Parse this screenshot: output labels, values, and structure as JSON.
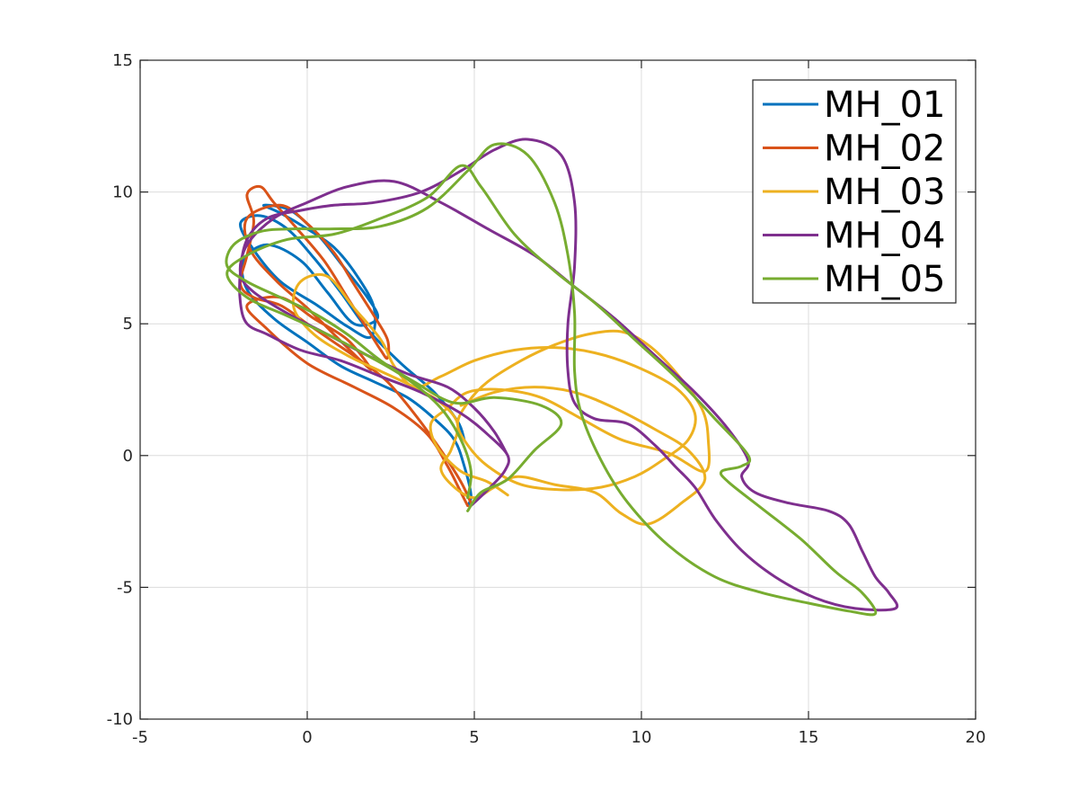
{
  "chart_data": {
    "type": "line",
    "title": "",
    "xlabel": "",
    "ylabel": "",
    "xlim": [
      -5,
      20
    ],
    "ylim": [
      -10,
      15
    ],
    "x_ticks": [
      "-5",
      "0",
      "5",
      "10",
      "15",
      "20"
    ],
    "y_ticks": [
      "15",
      "10",
      "5",
      "0",
      "-5",
      "-10"
    ],
    "grid": true,
    "legend_position": "top-right",
    "series": [
      {
        "name": "MH_01",
        "color": "#0072bd",
        "points": [
          [
            4.7,
            0.6
          ],
          [
            4.5,
            1.3
          ],
          [
            3.8,
            2.4
          ],
          [
            2.8,
            3.5
          ],
          [
            1.8,
            4.8
          ],
          [
            1.0,
            6.2
          ],
          [
            0.2,
            7.5
          ],
          [
            -0.6,
            8.6
          ],
          [
            -1.4,
            9.1
          ],
          [
            -2.0,
            8.8
          ],
          [
            -1.6,
            7.8
          ],
          [
            -0.8,
            6.6
          ],
          [
            0.3,
            5.7
          ],
          [
            1.2,
            4.9
          ],
          [
            1.9,
            4.5
          ],
          [
            2.0,
            5.6
          ],
          [
            1.5,
            6.8
          ],
          [
            0.8,
            7.9
          ],
          [
            0.0,
            8.6
          ],
          [
            -0.8,
            9.2
          ],
          [
            -1.3,
            9.5
          ],
          [
            -0.5,
            9.3
          ],
          [
            0.3,
            8.4
          ],
          [
            1.0,
            7.3
          ],
          [
            1.8,
            6.0
          ],
          [
            2.1,
            5.2
          ],
          [
            1.4,
            5.0
          ],
          [
            0.6,
            6.2
          ],
          [
            -0.2,
            7.4
          ],
          [
            -1.2,
            8.0
          ],
          [
            -1.9,
            7.4
          ],
          [
            -1.8,
            6.3
          ],
          [
            -1.0,
            5.2
          ],
          [
            0.0,
            4.3
          ],
          [
            1.0,
            3.4
          ],
          [
            2.0,
            2.8
          ],
          [
            3.0,
            2.2
          ],
          [
            3.8,
            1.4
          ],
          [
            4.4,
            0.6
          ],
          [
            4.7,
            -0.4
          ],
          [
            4.9,
            -1.5
          ],
          [
            4.8,
            -1.9
          ]
        ]
      },
      {
        "name": "MH_02",
        "color": "#d95319",
        "points": [
          [
            4.9,
            -1.8
          ],
          [
            4.6,
            -1.0
          ],
          [
            4.0,
            0.2
          ],
          [
            3.2,
            1.6
          ],
          [
            2.4,
            2.8
          ],
          [
            1.6,
            3.6
          ],
          [
            0.8,
            4.3
          ],
          [
            0.0,
            5.0
          ],
          [
            -0.8,
            5.7
          ],
          [
            -1.6,
            6.0
          ],
          [
            -2.0,
            6.5
          ],
          [
            -1.8,
            7.6
          ],
          [
            -1.6,
            8.9
          ],
          [
            -1.8,
            9.9
          ],
          [
            -1.4,
            10.2
          ],
          [
            -1.0,
            9.6
          ],
          [
            -0.3,
            8.6
          ],
          [
            0.5,
            7.4
          ],
          [
            1.2,
            6.0
          ],
          [
            1.8,
            4.8
          ],
          [
            2.2,
            4.0
          ],
          [
            2.4,
            3.7
          ],
          [
            2.4,
            4.4
          ],
          [
            2.0,
            5.3
          ],
          [
            1.4,
            6.5
          ],
          [
            0.8,
            7.7
          ],
          [
            0.0,
            8.8
          ],
          [
            -0.8,
            9.5
          ],
          [
            -1.8,
            9.0
          ],
          [
            -1.7,
            7.8
          ],
          [
            -0.9,
            6.6
          ],
          [
            0.0,
            5.6
          ],
          [
            0.8,
            4.6
          ],
          [
            1.6,
            3.6
          ],
          [
            1.9,
            3.3
          ],
          [
            1.2,
            4.4
          ],
          [
            0.2,
            5.2
          ],
          [
            -0.8,
            6.0
          ],
          [
            -1.8,
            5.7
          ],
          [
            -1.2,
            4.8
          ],
          [
            0.0,
            3.5
          ],
          [
            1.4,
            2.6
          ],
          [
            2.6,
            1.8
          ],
          [
            3.6,
            0.8
          ],
          [
            4.2,
            -0.4
          ],
          [
            4.6,
            -1.4
          ],
          [
            4.8,
            -1.9
          ]
        ]
      },
      {
        "name": "MH_03",
        "color": "#edb120",
        "points": [
          [
            6.0,
            -1.5
          ],
          [
            5.4,
            -1.0
          ],
          [
            4.6,
            -0.6
          ],
          [
            3.9,
            0.3
          ],
          [
            3.7,
            1.2
          ],
          [
            4.2,
            1.8
          ],
          [
            4.8,
            2.4
          ],
          [
            5.8,
            2.5
          ],
          [
            7.0,
            2.2
          ],
          [
            8.2,
            1.4
          ],
          [
            9.4,
            0.6
          ],
          [
            10.8,
            0.1
          ],
          [
            11.9,
            -0.6
          ],
          [
            12.0,
            0.6
          ],
          [
            11.8,
            1.8
          ],
          [
            11.0,
            3.2
          ],
          [
            10.2,
            4.2
          ],
          [
            9.4,
            4.7
          ],
          [
            8.4,
            4.6
          ],
          [
            7.4,
            4.2
          ],
          [
            6.4,
            3.6
          ],
          [
            5.4,
            2.8
          ],
          [
            4.8,
            2.0
          ],
          [
            4.5,
            1.2
          ],
          [
            4.8,
            0.4
          ],
          [
            5.4,
            -0.4
          ],
          [
            6.4,
            -1.1
          ],
          [
            7.6,
            -1.3
          ],
          [
            8.8,
            -1.2
          ],
          [
            9.8,
            -0.8
          ],
          [
            10.6,
            -0.2
          ],
          [
            11.4,
            0.6
          ],
          [
            11.6,
            1.6
          ],
          [
            11.0,
            2.6
          ],
          [
            9.8,
            3.4
          ],
          [
            8.6,
            3.9
          ],
          [
            7.4,
            4.1
          ],
          [
            6.2,
            4.0
          ],
          [
            5.0,
            3.6
          ],
          [
            4.0,
            3.0
          ],
          [
            3.2,
            2.6
          ],
          [
            2.6,
            3.4
          ],
          [
            2.2,
            4.4
          ],
          [
            1.4,
            5.6
          ],
          [
            0.6,
            6.8
          ],
          [
            -0.2,
            6.6
          ],
          [
            -0.4,
            5.6
          ],
          [
            0.2,
            4.6
          ],
          [
            1.2,
            3.8
          ],
          [
            2.2,
            3.2
          ],
          [
            3.2,
            2.6
          ],
          [
            4.0,
            2.0
          ],
          [
            4.5,
            1.2
          ],
          [
            4.3,
            0.2
          ],
          [
            4.0,
            -0.5
          ],
          [
            4.4,
            -1.2
          ],
          [
            5.0,
            -1.6
          ],
          [
            5.6,
            -1.2
          ],
          [
            6.3,
            -0.8
          ],
          [
            7.4,
            -1.1
          ],
          [
            8.6,
            -1.4
          ],
          [
            9.4,
            -2.2
          ],
          [
            10.2,
            -2.6
          ],
          [
            11.2,
            -1.8
          ],
          [
            11.9,
            -0.9
          ],
          [
            11.4,
            0.2
          ],
          [
            10.4,
            1.0
          ],
          [
            9.2,
            1.8
          ],
          [
            8.0,
            2.4
          ],
          [
            6.8,
            2.6
          ],
          [
            5.6,
            2.4
          ],
          [
            4.6,
            1.9
          ]
        ]
      },
      {
        "name": "MH_04",
        "color": "#7e2f8e",
        "points": [
          [
            4.9,
            -1.9
          ],
          [
            5.4,
            -1.3
          ],
          [
            5.9,
            -0.6
          ],
          [
            6.0,
            0.0
          ],
          [
            5.4,
            0.8
          ],
          [
            4.6,
            1.6
          ],
          [
            3.4,
            2.4
          ],
          [
            2.2,
            3.0
          ],
          [
            1.0,
            3.6
          ],
          [
            -0.2,
            4.0
          ],
          [
            -1.2,
            4.6
          ],
          [
            -1.8,
            5.0
          ],
          [
            -2.0,
            5.8
          ],
          [
            -2.0,
            7.0
          ],
          [
            -1.8,
            8.2
          ],
          [
            -1.2,
            9.0
          ],
          [
            -0.2,
            9.3
          ],
          [
            0.8,
            9.5
          ],
          [
            2.0,
            9.6
          ],
          [
            3.4,
            10.0
          ],
          [
            4.6,
            10.8
          ],
          [
            5.6,
            11.6
          ],
          [
            6.6,
            12.0
          ],
          [
            7.6,
            11.4
          ],
          [
            8.0,
            9.6
          ],
          [
            8.0,
            7.2
          ],
          [
            7.8,
            5.0
          ],
          [
            7.8,
            3.2
          ],
          [
            8.0,
            2.0
          ],
          [
            8.6,
            1.4
          ],
          [
            9.6,
            1.2
          ],
          [
            10.4,
            0.4
          ],
          [
            11.0,
            -0.4
          ],
          [
            11.6,
            -1.2
          ],
          [
            12.2,
            -2.4
          ],
          [
            13.0,
            -3.6
          ],
          [
            14.0,
            -4.6
          ],
          [
            15.2,
            -5.4
          ],
          [
            16.4,
            -5.8
          ],
          [
            17.6,
            -5.8
          ],
          [
            17.4,
            -5.2
          ],
          [
            17.0,
            -4.6
          ],
          [
            16.6,
            -3.6
          ],
          [
            16.2,
            -2.6
          ],
          [
            15.6,
            -2.1
          ],
          [
            14.4,
            -1.8
          ],
          [
            13.4,
            -1.4
          ],
          [
            13.0,
            -0.8
          ],
          [
            13.2,
            -0.2
          ],
          [
            12.6,
            1.0
          ],
          [
            11.6,
            2.4
          ],
          [
            10.4,
            3.8
          ],
          [
            9.2,
            5.2
          ],
          [
            8.0,
            6.4
          ],
          [
            6.8,
            7.6
          ],
          [
            5.4,
            8.6
          ],
          [
            4.0,
            9.6
          ],
          [
            2.6,
            10.4
          ],
          [
            1.2,
            10.2
          ],
          [
            0.0,
            9.6
          ],
          [
            -1.0,
            9.0
          ],
          [
            -1.8,
            8.0
          ],
          [
            -2.0,
            6.9
          ],
          [
            -1.6,
            6.2
          ],
          [
            -0.6,
            5.4
          ],
          [
            0.6,
            4.6
          ],
          [
            1.8,
            3.8
          ],
          [
            3.0,
            3.1
          ],
          [
            4.2,
            2.6
          ],
          [
            5.0,
            1.8
          ],
          [
            5.6,
            0.9
          ],
          [
            6.0,
            0.0
          ]
        ]
      },
      {
        "name": "MH_05",
        "color": "#77ac30",
        "points": [
          [
            4.8,
            -2.1
          ],
          [
            5.2,
            -1.4
          ],
          [
            6.0,
            -0.9
          ],
          [
            6.8,
            0.2
          ],
          [
            7.6,
            1.2
          ],
          [
            7.0,
            1.9
          ],
          [
            5.6,
            2.2
          ],
          [
            4.4,
            2.0
          ],
          [
            3.2,
            2.8
          ],
          [
            2.2,
            3.6
          ],
          [
            1.2,
            4.6
          ],
          [
            0.2,
            5.4
          ],
          [
            -0.8,
            6.0
          ],
          [
            -1.8,
            6.6
          ],
          [
            -2.4,
            7.2
          ],
          [
            -2.2,
            8.0
          ],
          [
            -1.4,
            8.5
          ],
          [
            -0.4,
            8.6
          ],
          [
            0.8,
            8.6
          ],
          [
            2.2,
            8.7
          ],
          [
            3.6,
            9.4
          ],
          [
            4.8,
            10.8
          ],
          [
            5.6,
            11.8
          ],
          [
            6.6,
            11.4
          ],
          [
            7.4,
            9.6
          ],
          [
            7.8,
            7.6
          ],
          [
            8.0,
            5.4
          ],
          [
            8.0,
            3.2
          ],
          [
            8.2,
            1.6
          ],
          [
            8.8,
            -0.2
          ],
          [
            9.6,
            -1.8
          ],
          [
            10.8,
            -3.4
          ],
          [
            12.2,
            -4.6
          ],
          [
            13.6,
            -5.2
          ],
          [
            15.0,
            -5.6
          ],
          [
            16.2,
            -5.9
          ],
          [
            17.0,
            -6.0
          ],
          [
            16.6,
            -5.2
          ],
          [
            15.8,
            -4.4
          ],
          [
            14.8,
            -3.2
          ],
          [
            13.6,
            -2.0
          ],
          [
            12.6,
            -1.0
          ],
          [
            12.4,
            -0.6
          ],
          [
            13.0,
            -0.4
          ],
          [
            13.2,
            0.0
          ],
          [
            12.2,
            1.4
          ],
          [
            11.0,
            3.0
          ],
          [
            9.8,
            4.4
          ],
          [
            8.6,
            5.8
          ],
          [
            7.4,
            7.0
          ],
          [
            6.2,
            8.4
          ],
          [
            5.2,
            10.2
          ],
          [
            4.6,
            11.0
          ],
          [
            3.6,
            9.8
          ],
          [
            2.2,
            9.0
          ],
          [
            0.8,
            8.4
          ],
          [
            -0.6,
            8.2
          ],
          [
            -1.8,
            7.6
          ],
          [
            -2.4,
            6.9
          ],
          [
            -1.8,
            6.0
          ],
          [
            -0.6,
            5.3
          ],
          [
            0.6,
            4.6
          ],
          [
            1.8,
            3.8
          ],
          [
            3.0,
            2.9
          ],
          [
            4.0,
            1.8
          ],
          [
            4.6,
            0.6
          ],
          [
            4.9,
            -0.6
          ],
          [
            4.8,
            -1.6
          ]
        ]
      }
    ]
  }
}
